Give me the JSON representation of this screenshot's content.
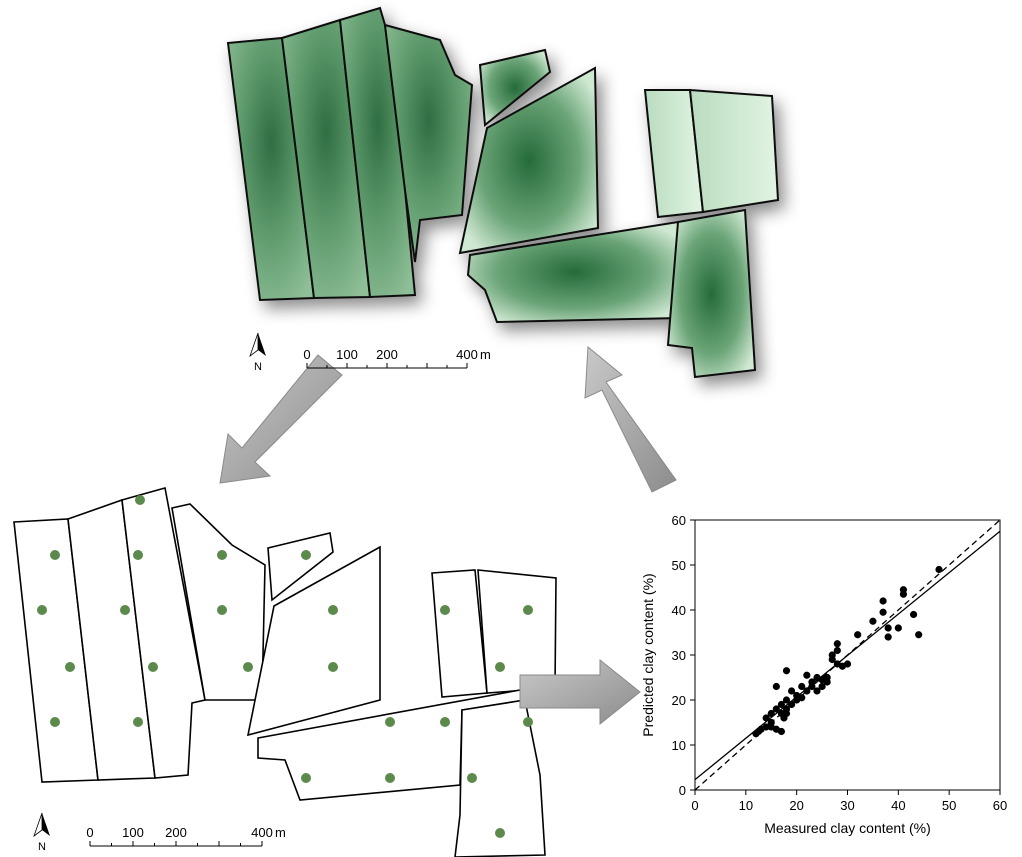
{
  "top_map": {
    "north": "N",
    "scale": {
      "labels": [
        0,
        100,
        200,
        400
      ],
      "unit": "m"
    }
  },
  "bottom_map": {
    "north": "N",
    "scale": {
      "labels": [
        0,
        100,
        200,
        400
      ],
      "unit": "m"
    }
  },
  "chart_data": {
    "type": "scatter",
    "xlabel": "Measured clay content (%)",
    "ylabel": "Predicted clay content (%)",
    "xlim": [
      0,
      60
    ],
    "ylim": [
      0,
      60
    ],
    "xticks": [
      0,
      10,
      20,
      30,
      40,
      50,
      60
    ],
    "yticks": [
      0,
      10,
      20,
      30,
      40,
      50,
      60
    ],
    "color": "#000000",
    "x": [
      12,
      12.5,
      13,
      14,
      14,
      15,
      15,
      15,
      16,
      16,
      16,
      17,
      17,
      17,
      17.5,
      18,
      18,
      18,
      18,
      19,
      19,
      20,
      20,
      21,
      21,
      22,
      22,
      23,
      23,
      24,
      24,
      25,
      25,
      26,
      26,
      27,
      27,
      28,
      28,
      28,
      29,
      30,
      32,
      35,
      37,
      37,
      38,
      38,
      40,
      41,
      41,
      43,
      44,
      48
    ],
    "values": [
      12.5,
      13,
      13.5,
      14,
      16,
      15,
      17,
      14,
      13.5,
      18,
      23,
      13,
      17,
      19,
      16,
      18,
      20,
      26.5,
      17,
      19,
      22,
      21,
      20,
      20.5,
      23,
      22,
      25.5,
      23,
      24,
      22,
      25,
      24.5,
      23,
      24,
      25,
      29,
      30,
      28,
      31,
      32.5,
      27.5,
      28,
      34.5,
      37.5,
      42,
      39.5,
      36,
      34,
      36,
      44.5,
      43.5,
      39,
      34.5,
      49
    ],
    "fit_line": {
      "x": [
        0,
        60
      ],
      "y": [
        2.3,
        57.5
      ]
    },
    "one_to_one": {
      "x": [
        0,
        60
      ],
      "y": [
        0,
        60
      ]
    }
  }
}
